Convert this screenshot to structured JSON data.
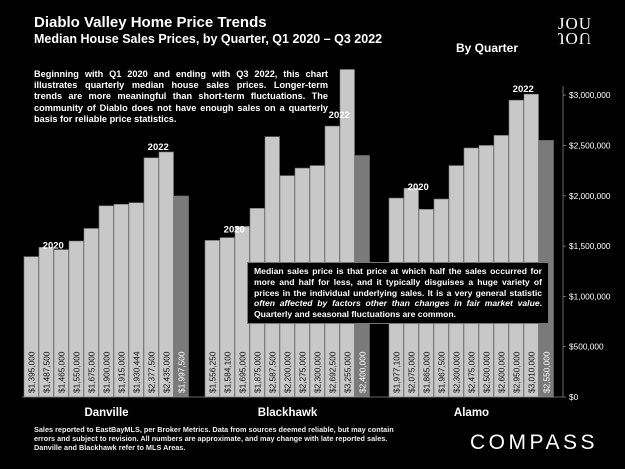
{
  "header": {
    "title": "Diablo Valley Home Price Trends",
    "subtitle": "Median House Sales Prices, by Quarter, Q1 2020 – Q3 2022",
    "by_quarter": "By Quarter",
    "logo_text_top": "ЈOU",
    "logo_text_bottom": "ЈOU"
  },
  "description": "Beginning with Q1 2020 and ending with Q3 2022, this chart illustrates quarterly median house sales prices. Longer-term trends are more meaningful than short-term fluctuations. The community of Diablo does not have enough sales on a quarterly basis for reliable price statistics.",
  "note": {
    "part1": "Median sales price is that price at which half the sales occurred for more and half for less, and it typically disguises a huge variety of prices in the individual underlying sales. It is a very general statistic ",
    "emphasis": "often affected by factors other than changes in fair market value",
    "part2": ". Quarterly and seasonal fluctuations are common."
  },
  "footer": {
    "line1": "Sales reported to EastBayMLS, per Broker Metrics. Data from sources deemed reliable, but may contain",
    "line2": "errors and subject to revision. All numbers are approximate, and may change with late reported sales.",
    "line3": "Danville and Blackhawk refer to MLS Areas."
  },
  "brand": "COMPASS",
  "colors": {
    "background": "#000000",
    "bar": "#c8c8c8",
    "bar_last": "#7a7a7a",
    "bar_stroke": "#777777",
    "text": "#ffffff"
  },
  "chart_data": {
    "type": "bar",
    "y_axis_position": "right",
    "ylim": [
      0,
      3250000
    ],
    "yticks": [
      0,
      500000,
      1000000,
      1500000,
      2000000,
      2500000,
      3000000
    ],
    "ytick_labels": [
      "$0",
      "$500,000",
      "$1,000,000",
      "$1,500,000",
      "$2,000,000",
      "$2,500,000",
      "$3,000,000"
    ],
    "groups": [
      {
        "name": "Danville",
        "year_labels": [
          {
            "index": 0,
            "text": "2020"
          },
          {
            "index": 8,
            "text": "2022"
          }
        ],
        "values": [
          1395000,
          1487500,
          1465000,
          1550000,
          1675000,
          1900000,
          1915000,
          1930444,
          2377500,
          2435000,
          1997500
        ],
        "labels": [
          "$1,395,000",
          "$1,487,500",
          "$1,465,000",
          "$1,550,000",
          "$1,675,000",
          "$1,900,000",
          "$1,915,000",
          "$1,930,444",
          "$2,377,500",
          "$2,435,000",
          "$1,997,500"
        ]
      },
      {
        "name": "Blackhawk",
        "year_labels": [
          {
            "index": 0,
            "text": "2020"
          },
          {
            "index": 8,
            "text": "2022"
          }
        ],
        "values": [
          1556250,
          1584100,
          1695000,
          1875000,
          2587500,
          2200000,
          2275000,
          2300000,
          2692500,
          3255000,
          2400000
        ],
        "labels": [
          "$1,556,250",
          "$1,584,100",
          "$1,695,000",
          "$1,875,000",
          "$2,587,500",
          "$2,200,000",
          "$2,275,000",
          "$2,300,000",
          "$2,692,500",
          "$3,255,000",
          "$2,400,000"
        ]
      },
      {
        "name": "Alamo",
        "year_labels": [
          {
            "index": 0,
            "text": "2020"
          },
          {
            "index": 8,
            "text": "2022"
          }
        ],
        "values": [
          1977100,
          2075000,
          1865000,
          1967500,
          2300000,
          2475000,
          2500000,
          2600000,
          2950000,
          3010000,
          2550000
        ],
        "labels": [
          "$1,977,100",
          "$2,075,000",
          "$1,865,000",
          "$1,967,500",
          "$2,300,000",
          "$2,475,000",
          "$2,500,000",
          "$2,600,000",
          "$2,950,000",
          "$3,010,000",
          "$2,550,000"
        ]
      }
    ]
  }
}
